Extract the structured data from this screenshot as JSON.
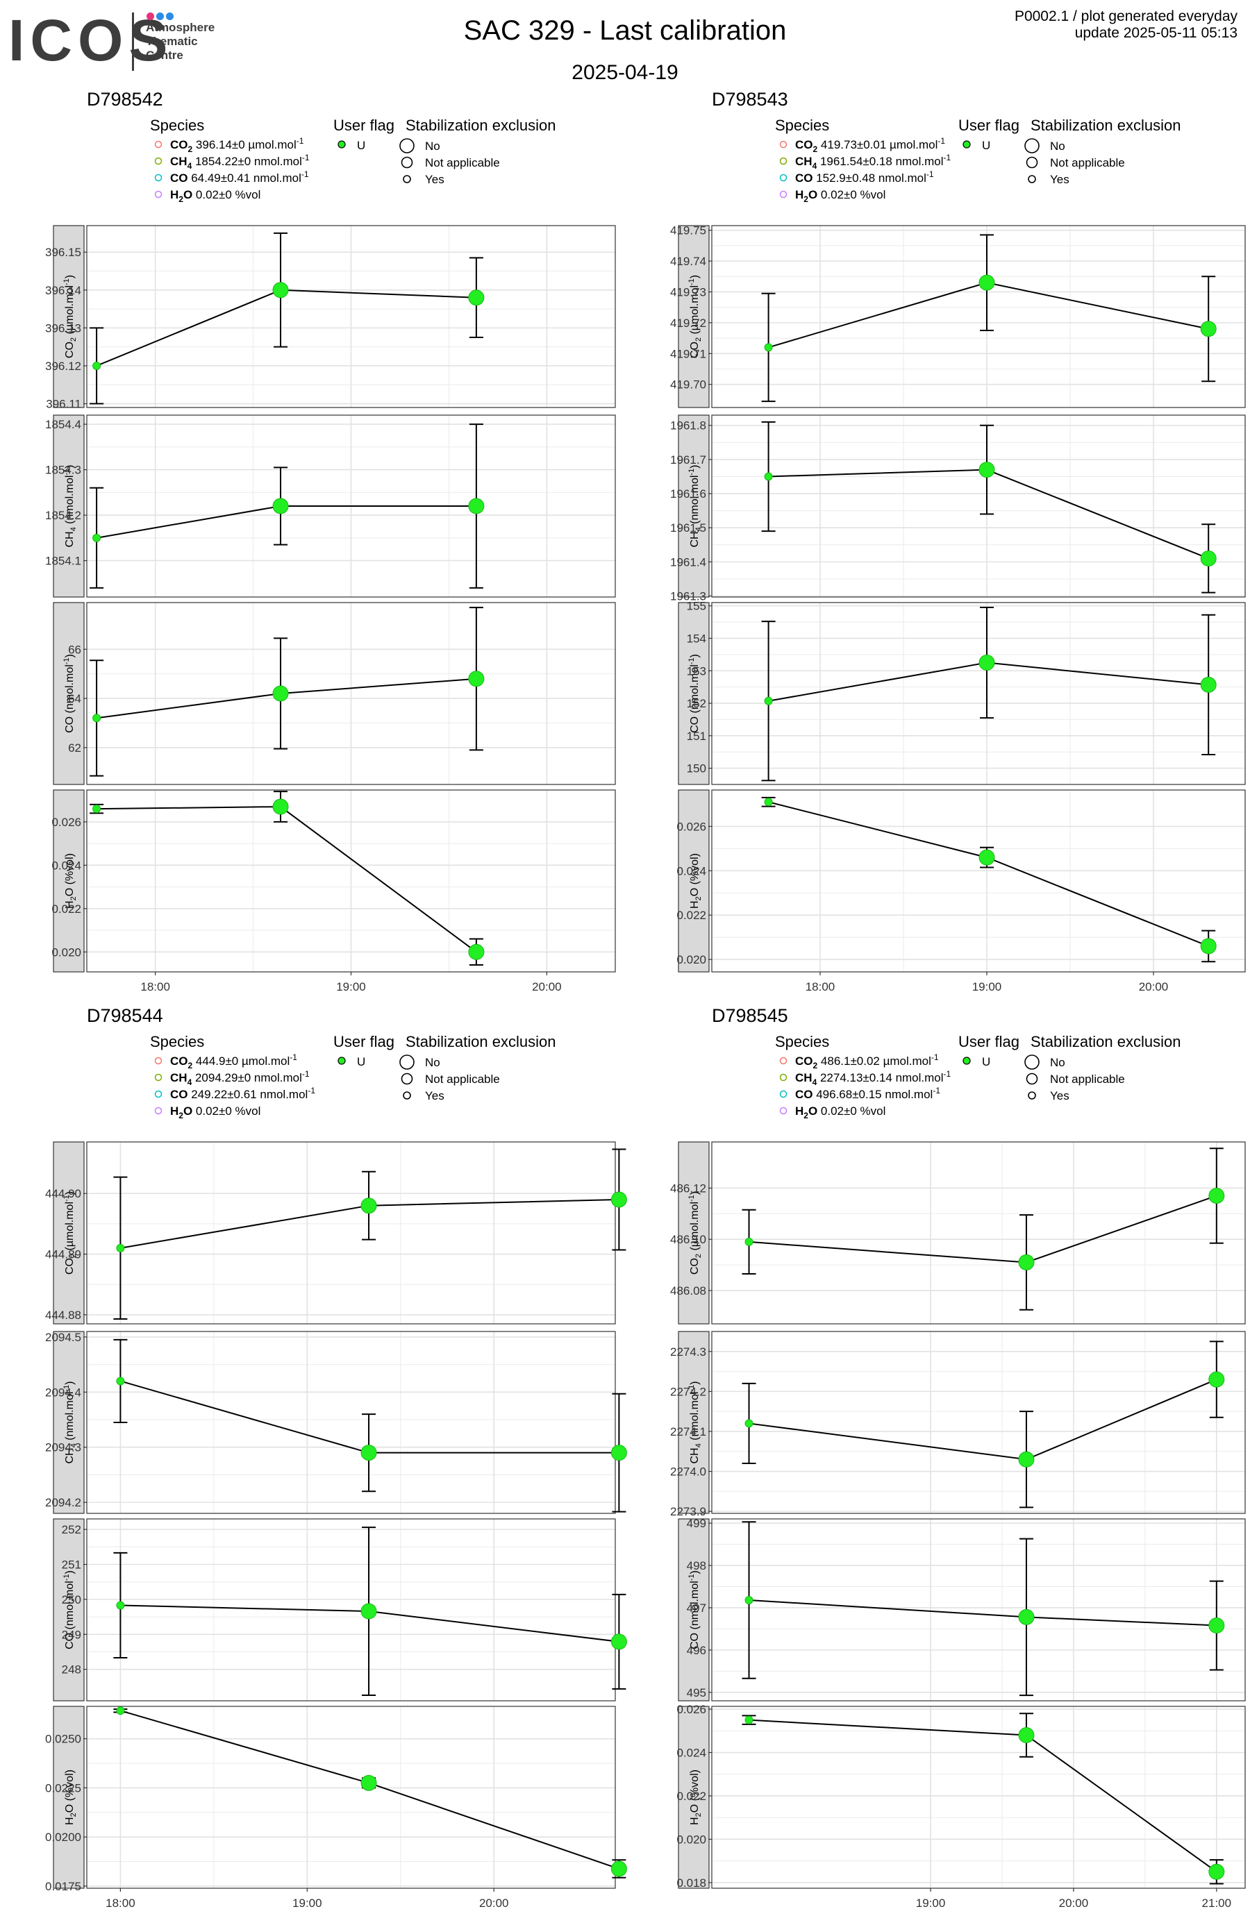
{
  "header": {
    "logo_text": "ICOS",
    "logo_sub": [
      "Atmosphere",
      "Thematic",
      "Centre"
    ],
    "title": "SAC 329 - Last calibration",
    "subtitle": "2025-04-19",
    "meta_line1": "P0002.1 / plot generated everyday",
    "meta_line2": "update  2025-05-11 05:13"
  },
  "colors": {
    "point": "#22ee22",
    "point_outline": "#17b817",
    "strip_bg": "#d9d9d9",
    "grid": "#ebebeb",
    "legend_co2": "#f8766d",
    "legend_ch4": "#7cae00",
    "legend_co": "#00bfc4",
    "legend_h2o": "#c77cff"
  },
  "legend_titles": {
    "species": "Species",
    "user_flag": "User flag",
    "stab": "Stabilization exclusion"
  },
  "legend_user_flag": "U",
  "legend_stab_items": [
    "No",
    "Not applicable",
    "Yes"
  ],
  "chart_data": [
    {
      "type": "line",
      "title": "D798542",
      "legend_species": [
        {
          "name": "CO",
          "sub": "2",
          "value": "396.14",
          "pm": "0",
          "unit": "µmol.mol",
          "sup": "-1"
        },
        {
          "name": "CH",
          "sub": "4",
          "value": "1854.22",
          "pm": "0",
          "unit": "nmol.mol",
          "sup": "-1"
        },
        {
          "name": "CO",
          "sub": "",
          "value": "64.49",
          "pm": "0.41",
          "unit": "nmol.mol",
          "sup": "-1"
        },
        {
          "name": "H",
          "sub": "2",
          "name2": "O",
          "value": "0.02",
          "pm": "0",
          "unit": "%vol",
          "sup": ""
        }
      ],
      "x_ticks": [
        "18:00",
        "19:00",
        "20:00"
      ],
      "x_tick_pos": [
        1.0,
        2.0,
        3.0
      ],
      "x_range": [
        0.65,
        3.35
      ],
      "x": [
        0.7,
        1.64,
        2.64
      ],
      "facets": [
        {
          "ylabel_main": "CO",
          "ylabel_sub": "2",
          "ylabel_unit": "µmol.mol",
          "ylabel_sup": "-1",
          "y": [
            396.12,
            396.14,
            396.138
          ],
          "err": [
            0.01,
            0.015,
            0.0105
          ],
          "ylim": [
            396.109,
            396.157
          ],
          "ticks": [
            396.11,
            396.12,
            396.13,
            396.14,
            396.15
          ],
          "tick_labels": [
            "396.11",
            "396.12",
            "396.13",
            "396.14",
            "396.15"
          ]
        },
        {
          "ylabel_main": "CH",
          "ylabel_sub": "4",
          "ylabel_unit": "nmol.mol",
          "ylabel_sup": "-1",
          "y": [
            1854.15,
            1854.22,
            1854.22
          ],
          "err": [
            0.11,
            0.085,
            0.18
          ],
          "ylim": [
            1854.02,
            1854.42
          ],
          "ticks": [
            1854.1,
            1854.2,
            1854.3,
            1854.4
          ],
          "tick_labels": [
            "1854.1",
            "1854.2",
            "1854.3",
            "1854.4"
          ]
        },
        {
          "ylabel_main": "CO",
          "ylabel_sub": "",
          "ylabel_unit": "nmol.mol",
          "ylabel_sup": "-1",
          "y": [
            63.2,
            64.2,
            64.8
          ],
          "err": [
            2.35,
            2.25,
            2.9
          ],
          "ylim": [
            60.5,
            67.9
          ],
          "ticks": [
            62,
            64,
            66
          ],
          "tick_labels": [
            "62",
            "64",
            "66"
          ]
        },
        {
          "ylabel_main": "H",
          "ylabel_sub": "2",
          "ylabel_unit": "%vol",
          "ylabel_sup": "",
          "ylabel_after": "O",
          "y": [
            0.0266,
            0.0267,
            0.02
          ],
          "err": [
            0.0002,
            0.0007,
            0.0006
          ],
          "ylim": [
            0.01908,
            0.02747
          ],
          "ticks": [
            0.02,
            0.022,
            0.024,
            0.026
          ],
          "tick_labels": [
            "0.020",
            "0.022",
            "0.024",
            "0.026"
          ]
        }
      ],
      "sizes": [
        1,
        2,
        2
      ]
    },
    {
      "type": "line",
      "title": "D798543",
      "legend_species": [
        {
          "name": "CO",
          "sub": "2",
          "value": "419.73",
          "pm": "0.01",
          "unit": "µmol.mol",
          "sup": "-1"
        },
        {
          "name": "CH",
          "sub": "4",
          "value": "1961.54",
          "pm": "0.18",
          "unit": "nmol.mol",
          "sup": "-1"
        },
        {
          "name": "CO",
          "sub": "",
          "value": "152.9",
          "pm": "0.48",
          "unit": "nmol.mol",
          "sup": "-1"
        },
        {
          "name": "H",
          "sub": "2",
          "name2": "O",
          "value": "0.02",
          "pm": "0",
          "unit": "%vol",
          "sup": ""
        }
      ],
      "x_ticks": [
        "18:00",
        "19:00",
        "20:00"
      ],
      "x_tick_pos": [
        1.0,
        2.0,
        3.0
      ],
      "x_range": [
        0.35,
        3.55
      ],
      "x": [
        0.69,
        2.0,
        3.33
      ],
      "facets": [
        {
          "ylabel_main": "CO",
          "ylabel_sub": "2",
          "ylabel_unit": "µmol.mol",
          "ylabel_sup": "-1",
          "y": [
            419.712,
            419.733,
            419.718
          ],
          "err": [
            0.0175,
            0.0155,
            0.017
          ],
          "ylim": [
            419.6925,
            419.7515
          ],
          "ticks": [
            419.7,
            419.71,
            419.72,
            419.73,
            419.74,
            419.75
          ],
          "tick_labels": [
            "419.70",
            "419.71",
            "419.72",
            "419.73",
            "419.74",
            "419.75"
          ]
        },
        {
          "ylabel_main": "CH",
          "ylabel_sub": "4",
          "ylabel_unit": "nmol.mol",
          "ylabel_sup": "-1",
          "y": [
            1961.65,
            1961.67,
            1961.41
          ],
          "err": [
            0.16,
            0.13,
            0.1
          ],
          "ylim": [
            1961.297,
            1961.83
          ],
          "ticks": [
            1961.3,
            1961.4,
            1961.5,
            1961.6,
            1961.7,
            1961.8
          ],
          "tick_labels": [
            "1961.3",
            "1961.4",
            "1961.5",
            "1961.6",
            "1961.7",
            "1961.8"
          ]
        },
        {
          "ylabel_main": "CO",
          "ylabel_sub": "",
          "ylabel_unit": "nmol.mol",
          "ylabel_sup": "-1",
          "y": [
            152.07,
            153.25,
            152.57
          ],
          "err": [
            2.45,
            1.7,
            2.15
          ],
          "ylim": [
            149.5,
            155.1
          ],
          "ticks": [
            150,
            151,
            152,
            153,
            154,
            155
          ],
          "tick_labels": [
            "150",
            "151",
            "152",
            "153",
            "154",
            "155"
          ]
        },
        {
          "ylabel_main": "H",
          "ylabel_sub": "2",
          "ylabel_unit": "%vol",
          "ylabel_sup": "",
          "ylabel_after": "O",
          "y": [
            0.0271,
            0.0246,
            0.0206
          ],
          "err": [
            0.0002,
            0.00045,
            0.0007
          ],
          "ylim": [
            0.01944,
            0.02764
          ],
          "ticks": [
            0.02,
            0.022,
            0.024,
            0.026
          ],
          "tick_labels": [
            "0.020",
            "0.022",
            "0.024",
            "0.026"
          ]
        }
      ],
      "sizes": [
        1,
        2,
        2
      ]
    },
    {
      "type": "line",
      "title": "D798544",
      "legend_species": [
        {
          "name": "CO",
          "sub": "2",
          "value": "444.9",
          "pm": "0",
          "unit": "µmol.mol",
          "sup": "-1"
        },
        {
          "name": "CH",
          "sub": "4",
          "value": "2094.29",
          "pm": "0",
          "unit": "nmol.mol",
          "sup": "-1"
        },
        {
          "name": "CO",
          "sub": "",
          "value": "249.22",
          "pm": "0.61",
          "unit": "nmol.mol",
          "sup": "-1"
        },
        {
          "name": "H",
          "sub": "2",
          "name2": "O",
          "value": "0.02",
          "pm": "0",
          "unit": "%vol",
          "sup": ""
        }
      ],
      "x_ticks": [
        "18:00",
        "19:00",
        "20:00"
      ],
      "x_tick_pos": [
        1.0,
        2.0,
        3.0
      ],
      "x_range": [
        0.82,
        3.65
      ],
      "x": [
        1.0,
        2.33,
        3.67
      ],
      "facets": [
        {
          "ylabel_main": "CO",
          "ylabel_sub": "2",
          "ylabel_unit": "µmol.mol",
          "ylabel_sup": "-1",
          "y": [
            444.891,
            444.898,
            444.899
          ],
          "err": [
            0.0117,
            0.0056,
            0.0083
          ],
          "ylim": [
            444.8785,
            444.9085
          ],
          "ticks": [
            444.88,
            444.89,
            444.9
          ],
          "tick_labels": [
            "444.88",
            "444.89",
            "444.90"
          ]
        },
        {
          "ylabel_main": "CH",
          "ylabel_sub": "4",
          "ylabel_unit": "nmol.mol",
          "ylabel_sup": "-1",
          "y": [
            2094.42,
            2094.29,
            2094.29
          ],
          "err": [
            0.075,
            0.07,
            0.107
          ],
          "ylim": [
            2094.18,
            2094.51
          ],
          "ticks": [
            2094.2,
            2094.3,
            2094.4,
            2094.5
          ],
          "tick_labels": [
            "2094.2",
            "2094.3",
            "2094.4",
            "2094.5"
          ]
        },
        {
          "ylabel_main": "CO",
          "ylabel_sub": "",
          "ylabel_unit": "nmol.mol",
          "ylabel_sup": "-1",
          "y": [
            249.83,
            249.66,
            248.79
          ],
          "err": [
            1.5,
            2.4,
            1.35
          ],
          "ylim": [
            247.1,
            252.3
          ],
          "ticks": [
            248,
            249,
            250,
            251,
            252
          ],
          "tick_labels": [
            "248",
            "249",
            "250",
            "251",
            "252"
          ]
        },
        {
          "ylabel_main": "H",
          "ylabel_sub": "2",
          "ylabel_unit": "%vol",
          "ylabel_sup": "",
          "ylabel_after": "O",
          "y": [
            0.02643,
            0.02275,
            0.01838
          ],
          "err": [
            8e-05,
            0.00025,
            0.00045
          ],
          "ylim": [
            0.01739,
            0.02665
          ],
          "ticks": [
            0.0175,
            0.02,
            0.0225,
            0.025
          ],
          "tick_labels": [
            "0.0175",
            "0.0200",
            "0.0225",
            "0.0250"
          ]
        }
      ],
      "sizes": [
        1,
        2,
        2
      ]
    },
    {
      "type": "line",
      "title": "D798545",
      "legend_species": [
        {
          "name": "CO",
          "sub": "2",
          "value": "486.1",
          "pm": "0.02",
          "unit": "µmol.mol",
          "sup": "-1"
        },
        {
          "name": "CH",
          "sub": "4",
          "value": "2274.13",
          "pm": "0.14",
          "unit": "nmol.mol",
          "sup": "-1"
        },
        {
          "name": "CO",
          "sub": "",
          "value": "496.68",
          "pm": "0.15",
          "unit": "nmol.mol",
          "sup": "-1"
        },
        {
          "name": "H",
          "sub": "2",
          "name2": "O",
          "value": "0.02",
          "pm": "0",
          "unit": "%vol",
          "sup": ""
        }
      ],
      "x_ticks": [
        "19:00",
        "20:00",
        "21:00"
      ],
      "x_tick_pos": [
        2.0,
        3.0,
        4.0
      ],
      "x_range": [
        0.47,
        4.2
      ],
      "x": [
        0.73,
        2.67,
        4.0
      ],
      "facets": [
        {
          "ylabel_main": "CO",
          "ylabel_sub": "2",
          "ylabel_unit": "µmol.mol",
          "ylabel_sup": "-1",
          "y": [
            486.099,
            486.091,
            486.117
          ],
          "err": [
            0.0125,
            0.0185,
            0.0185
          ],
          "ylim": [
            486.067,
            486.138
          ],
          "ticks": [
            486.08,
            486.1,
            486.12
          ],
          "tick_labels": [
            "486.08",
            "486.10",
            "486.12"
          ]
        },
        {
          "ylabel_main": "CH",
          "ylabel_sub": "4",
          "ylabel_unit": "nmol.mol",
          "ylabel_sup": "-1",
          "y": [
            2274.12,
            2274.03,
            2274.23
          ],
          "err": [
            0.1,
            0.12,
            0.095
          ],
          "ylim": [
            2273.895,
            2274.35
          ],
          "ticks": [
            2273.9,
            2274.0,
            2274.1,
            2274.2,
            2274.3
          ],
          "tick_labels": [
            "2273.9",
            "2274.0",
            "2274.1",
            "2274.2",
            "2274.3"
          ]
        },
        {
          "ylabel_main": "CO",
          "ylabel_sub": "",
          "ylabel_unit": "nmol.mol",
          "ylabel_sup": "-1",
          "y": [
            497.18,
            496.78,
            496.58
          ],
          "err": [
            1.85,
            1.85,
            1.05
          ],
          "ylim": [
            494.8,
            499.1
          ],
          "ticks": [
            495,
            496,
            497,
            498,
            499
          ],
          "tick_labels": [
            "495",
            "496",
            "497",
            "498",
            "499"
          ]
        },
        {
          "ylabel_main": "H",
          "ylabel_sub": "2",
          "ylabel_unit": "%vol",
          "ylabel_sup": "",
          "ylabel_after": "O",
          "y": [
            0.0255,
            0.0248,
            0.0185
          ],
          "err": [
            0.0002,
            0.001,
            0.00055
          ],
          "ylim": [
            0.01774,
            0.02613
          ],
          "ticks": [
            0.018,
            0.02,
            0.022,
            0.024,
            0.026
          ],
          "tick_labels": [
            "0.018",
            "0.020",
            "0.022",
            "0.024",
            "0.026"
          ]
        }
      ],
      "sizes": [
        1,
        2,
        2
      ]
    }
  ]
}
